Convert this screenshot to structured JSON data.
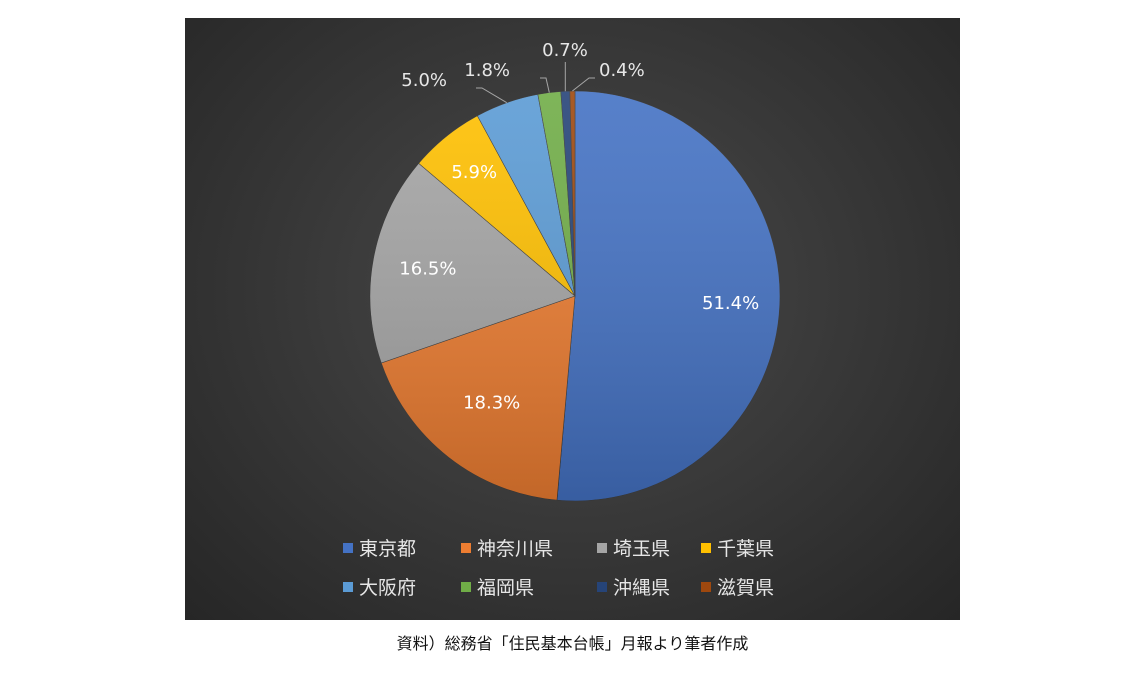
{
  "chart_data": {
    "type": "pie",
    "title": "",
    "legend_position": "bottom",
    "slices": [
      {
        "name": "東京都",
        "value": 51.4,
        "label": "51.4%",
        "color": "#4472C4"
      },
      {
        "name": "神奈川県",
        "value": 18.3,
        "label": "18.3%",
        "color": "#ED7D31"
      },
      {
        "name": "埼玉県",
        "value": 16.5,
        "label": "16.5%",
        "color": "#A5A5A5"
      },
      {
        "name": "千葉県",
        "value": 5.9,
        "label": "5.9%",
        "color": "#FFC000"
      },
      {
        "name": "大阪府",
        "value": 5.0,
        "label": "5.0%",
        "color": "#5B9BD5"
      },
      {
        "name": "福岡県",
        "value": 1.8,
        "label": "1.8%",
        "color": "#70AD47"
      },
      {
        "name": "沖縄県",
        "value": 0.7,
        "label": "0.7%",
        "color": "#264478"
      },
      {
        "name": "滋賀県",
        "value": 0.4,
        "label": "0.4%",
        "color": "#9E480E"
      }
    ]
  },
  "caption": {
    "text": "資料）総務省「住民基本台帳」月報より筆者作成"
  }
}
